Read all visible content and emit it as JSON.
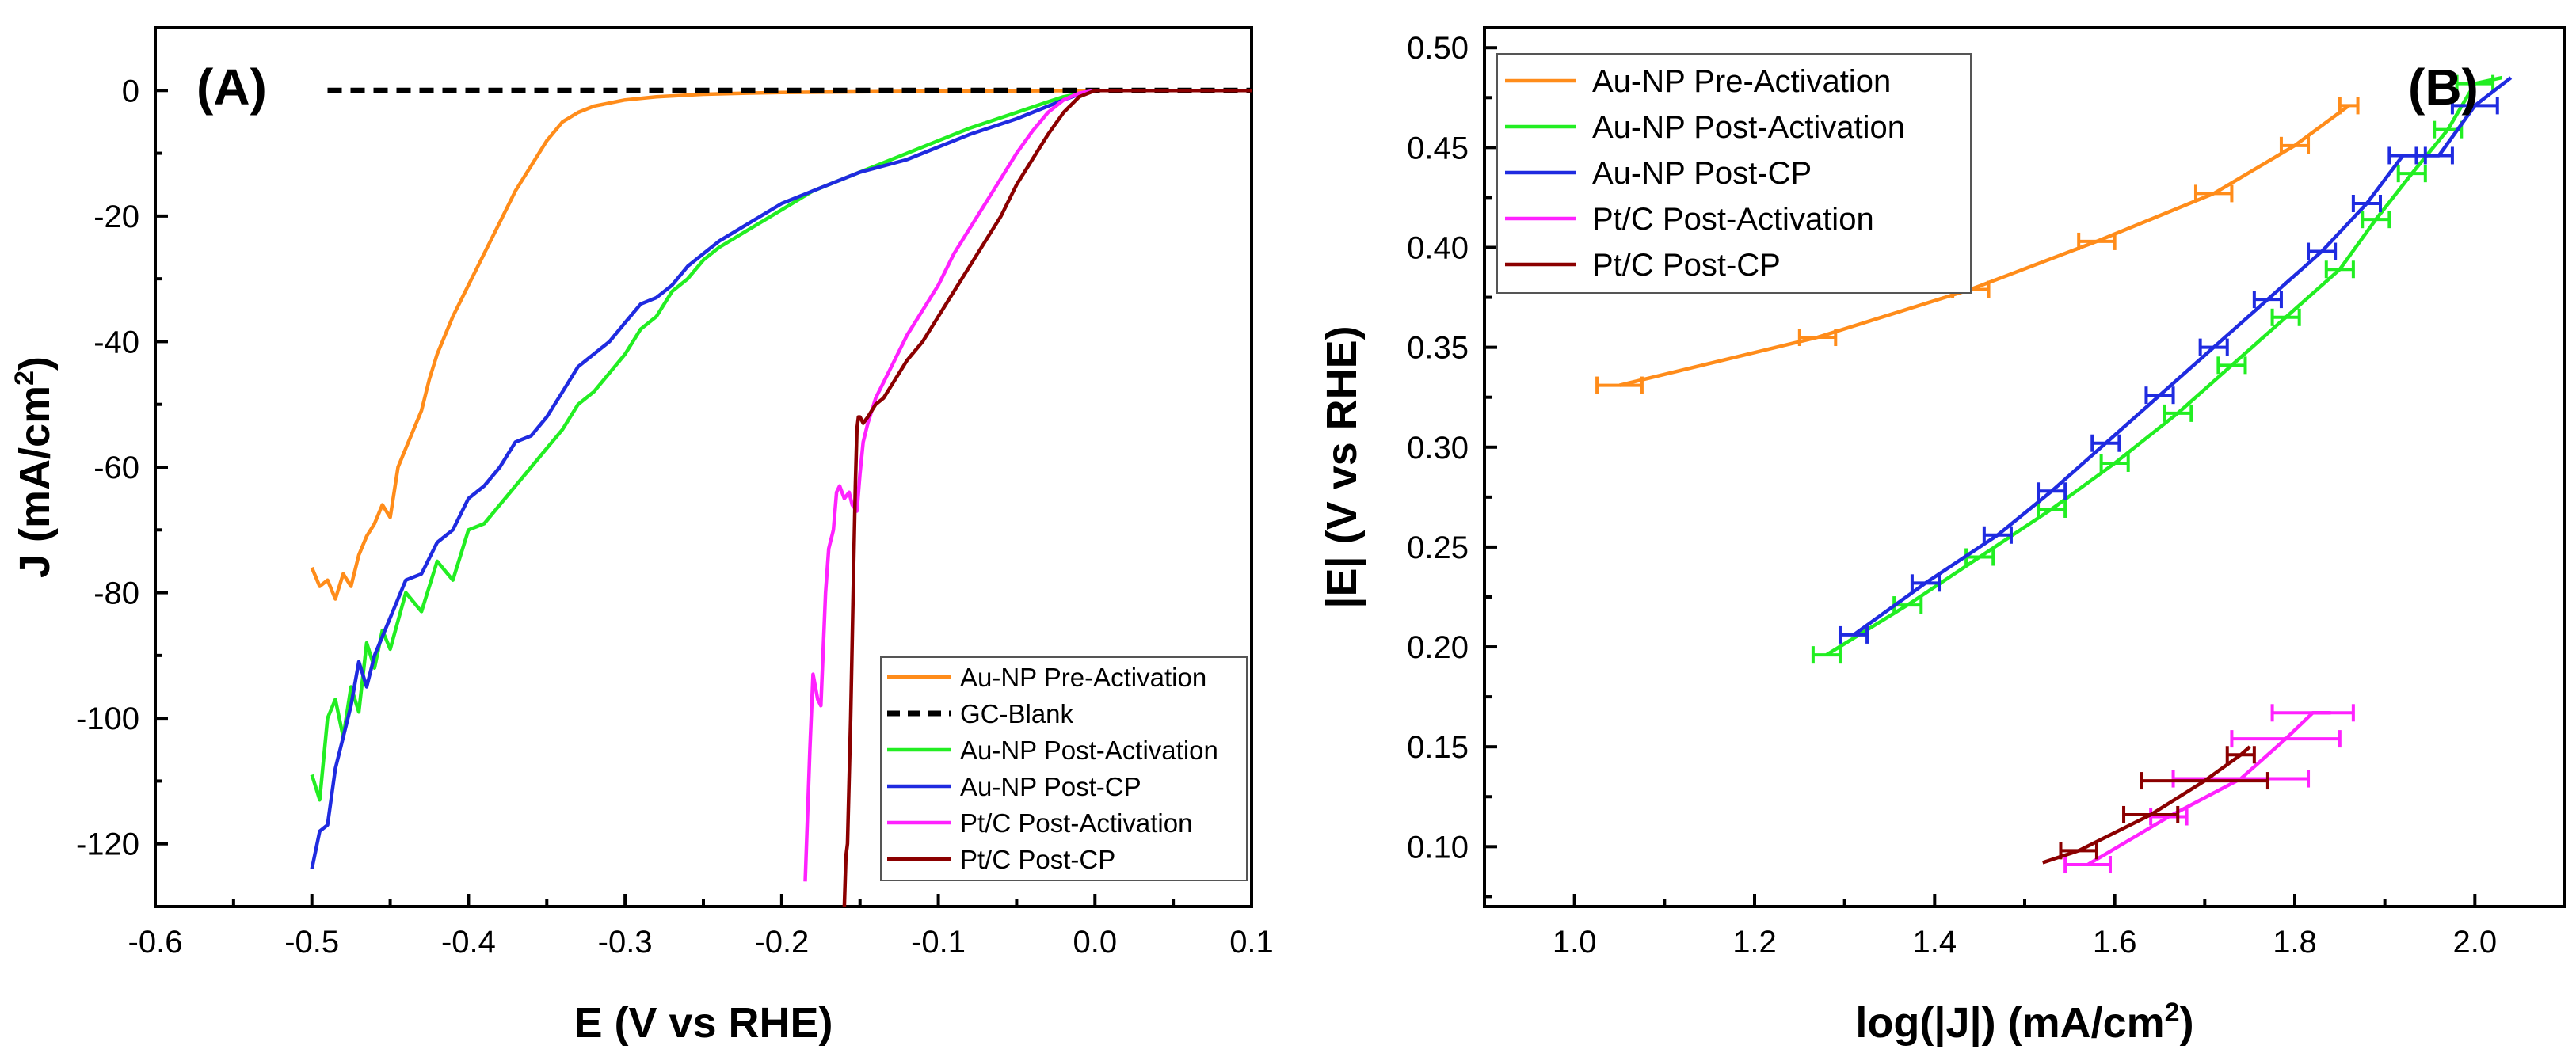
{
  "chart_data": [
    {
      "type": "line",
      "panel_label": "(A)",
      "xlabel": "E (V vs RHE)",
      "ylabel_main": "J (mA/cm",
      "ylabel_sup": "2",
      "ylabel_end": ")",
      "xlim": [
        -0.6,
        0.1
      ],
      "ylim": [
        -130,
        10
      ],
      "xticks": [
        -0.6,
        -0.5,
        -0.4,
        -0.3,
        -0.2,
        -0.1,
        0.0,
        0.1
      ],
      "xtick_labels": [
        "-0.6",
        "-0.5",
        "-0.4",
        "-0.3",
        "-0.2",
        "-0.1",
        "0.0",
        "0.1"
      ],
      "yticks": [
        0,
        -20,
        -40,
        -60,
        -80,
        -100,
        -120
      ],
      "ytick_labels": [
        "0",
        "-20",
        "-40",
        "-60",
        "-80",
        "-100",
        "-120"
      ],
      "legend_position": "bottom-right",
      "series": [
        {
          "name": "Au-NP Pre-Activation",
          "color": "#FF8C1A",
          "dash": false,
          "x": [
            -0.5,
            -0.495,
            -0.49,
            -0.485,
            -0.48,
            -0.475,
            -0.47,
            -0.465,
            -0.46,
            -0.455,
            -0.45,
            -0.445,
            -0.44,
            -0.435,
            -0.43,
            -0.425,
            -0.42,
            -0.41,
            -0.4,
            -0.39,
            -0.38,
            -0.37,
            -0.36,
            -0.35,
            -0.34,
            -0.33,
            -0.32,
            -0.3,
            -0.28,
            -0.25,
            -0.22,
            -0.2,
            -0.15,
            -0.1,
            -0.05,
            0.0,
            0.05,
            0.1
          ],
          "y": [
            -76,
            -79,
            -78,
            -81,
            -77,
            -79,
            -74,
            -71,
            -69,
            -66,
            -68,
            -60,
            -57,
            -54,
            -51,
            -46,
            -42,
            -36,
            -31,
            -26,
            -21,
            -16,
            -12,
            -8,
            -5,
            -3.5,
            -2.5,
            -1.5,
            -1.0,
            -0.6,
            -0.4,
            -0.3,
            -0.2,
            -0.1,
            -0.05,
            0,
            0,
            0
          ]
        },
        {
          "name": "GC-Blank",
          "color": "#000000",
          "dash": true,
          "x": [
            -0.49,
            0.1
          ],
          "y": [
            0,
            0
          ]
        },
        {
          "name": "Au-NP Post-Activation",
          "color": "#22EE22",
          "dash": false,
          "x": [
            -0.5,
            -0.495,
            -0.49,
            -0.485,
            -0.48,
            -0.475,
            -0.47,
            -0.465,
            -0.46,
            -0.455,
            -0.45,
            -0.44,
            -0.43,
            -0.42,
            -0.41,
            -0.4,
            -0.39,
            -0.38,
            -0.37,
            -0.36,
            -0.35,
            -0.34,
            -0.33,
            -0.32,
            -0.31,
            -0.3,
            -0.29,
            -0.28,
            -0.27,
            -0.26,
            -0.25,
            -0.24,
            -0.22,
            -0.2,
            -0.18,
            -0.15,
            -0.12,
            -0.1,
            -0.08,
            -0.05,
            -0.03,
            -0.02,
            -0.01,
            0.0,
            0.05,
            0.1
          ],
          "y": [
            -109,
            -113,
            -100,
            -97,
            -103,
            -95,
            -99,
            -88,
            -92,
            -86,
            -89,
            -80,
            -83,
            -75,
            -78,
            -70,
            -69,
            -66,
            -63,
            -60,
            -57,
            -54,
            -50,
            -48,
            -45,
            -42,
            -38,
            -36,
            -32,
            -30,
            -27,
            -25,
            -22,
            -19,
            -16,
            -13,
            -10,
            -8,
            -6,
            -3.5,
            -1.8,
            -1,
            -0.5,
            0,
            0,
            0
          ]
        },
        {
          "name": "Au-NP Post-CP",
          "color": "#1F2BE0",
          "dash": false,
          "x": [
            -0.5,
            -0.495,
            -0.49,
            -0.485,
            -0.48,
            -0.475,
            -0.47,
            -0.465,
            -0.46,
            -0.455,
            -0.45,
            -0.44,
            -0.43,
            -0.42,
            -0.41,
            -0.4,
            -0.39,
            -0.38,
            -0.37,
            -0.36,
            -0.35,
            -0.34,
            -0.33,
            -0.32,
            -0.31,
            -0.3,
            -0.29,
            -0.28,
            -0.27,
            -0.26,
            -0.25,
            -0.24,
            -0.22,
            -0.2,
            -0.18,
            -0.15,
            -0.12,
            -0.1,
            -0.08,
            -0.05,
            -0.03,
            -0.02,
            -0.01,
            0.0,
            0.05,
            0.1
          ],
          "y": [
            -124,
            -118,
            -117,
            -108,
            -103,
            -98,
            -91,
            -95,
            -90,
            -87,
            -84,
            -78,
            -77,
            -72,
            -70,
            -65,
            -63,
            -60,
            -56,
            -55,
            -52,
            -48,
            -44,
            -42,
            -40,
            -37,
            -34,
            -33,
            -31,
            -28,
            -26,
            -24,
            -21,
            -18,
            -16,
            -13,
            -11,
            -9,
            -7,
            -4.5,
            -2.5,
            -1.5,
            -0.6,
            0,
            0,
            0
          ]
        },
        {
          "name": "Pt/C Post-Activation",
          "color": "#FF22FF",
          "dash": false,
          "x": [
            -0.185,
            -0.182,
            -0.18,
            -0.177,
            -0.175,
            -0.172,
            -0.17,
            -0.167,
            -0.165,
            -0.163,
            -0.16,
            -0.157,
            -0.155,
            -0.152,
            -0.15,
            -0.148,
            -0.145,
            -0.14,
            -0.13,
            -0.12,
            -0.11,
            -0.1,
            -0.09,
            -0.08,
            -0.07,
            -0.06,
            -0.05,
            -0.04,
            -0.03,
            -0.02,
            -0.01,
            0.0,
            0.05,
            0.1
          ],
          "y": [
            -126,
            -105,
            -93,
            -97,
            -98,
            -80,
            -73,
            -70,
            -64,
            -63,
            -65,
            -64,
            -66,
            -67,
            -61,
            -56,
            -53,
            -49,
            -44,
            -39,
            -35,
            -31,
            -26,
            -22,
            -18,
            -14,
            -10,
            -6.5,
            -3.5,
            -1.5,
            -0.4,
            0,
            0,
            0
          ]
        },
        {
          "name": "Pt/C Post-CP",
          "color": "#8B0000",
          "dash": false,
          "x": [
            -0.16,
            -0.159,
            -0.158,
            -0.157,
            -0.156,
            -0.155,
            -0.154,
            -0.153,
            -0.152,
            -0.151,
            -0.15,
            -0.148,
            -0.145,
            -0.14,
            -0.135,
            -0.13,
            -0.12,
            -0.11,
            -0.1,
            -0.09,
            -0.08,
            -0.07,
            -0.06,
            -0.05,
            -0.04,
            -0.03,
            -0.02,
            -0.01,
            0.0,
            0.05,
            0.1
          ],
          "y": [
            -130,
            -122,
            -120,
            -110,
            -100,
            -88,
            -75,
            -63,
            -54,
            -52,
            -52,
            -53,
            -52,
            -50,
            -49,
            -47,
            -43,
            -40,
            -36,
            -32,
            -28,
            -24,
            -20,
            -15,
            -11,
            -7,
            -3.5,
            -1,
            0,
            0,
            0
          ]
        }
      ]
    },
    {
      "type": "line",
      "panel_label": "(B)",
      "xlabel_main": "log(|J|) (mA/cm",
      "xlabel_sup": "2",
      "xlabel_end": ")",
      "ylabel": "|E| (V vs RHE)",
      "xlim": [
        0.9,
        2.1
      ],
      "ylim": [
        0.07,
        0.51
      ],
      "xticks": [
        1.0,
        1.2,
        1.4,
        1.6,
        1.8,
        2.0
      ],
      "xtick_labels": [
        "1.0",
        "1.2",
        "1.4",
        "1.6",
        "1.8",
        "2.0"
      ],
      "yticks": [
        0.1,
        0.15,
        0.2,
        0.25,
        0.3,
        0.35,
        0.4,
        0.45,
        0.5
      ],
      "ytick_labels": [
        "0.10",
        "0.15",
        "0.20",
        "0.25",
        "0.30",
        "0.35",
        "0.40",
        "0.45",
        "0.50"
      ],
      "legend_position": "top-left",
      "series": [
        {
          "name": "Au-NP Pre-Activation",
          "color": "#FF8C1A",
          "x": [
            1.05,
            1.27,
            1.44,
            1.58,
            1.71,
            1.8,
            1.86
          ],
          "y": [
            0.331,
            0.355,
            0.379,
            0.403,
            0.427,
            0.451,
            0.471
          ],
          "err": [
            0.025,
            0.02,
            0.02,
            0.02,
            0.02,
            0.015,
            0.01
          ]
        },
        {
          "name": "Au-NP Post-Activation",
          "color": "#22EE22",
          "x": [
            1.28,
            1.37,
            1.45,
            1.53,
            1.6,
            1.67,
            1.73,
            1.79,
            1.85,
            1.89,
            1.93,
            1.97,
            2.0,
            2.03
          ],
          "y": [
            0.196,
            0.221,
            0.245,
            0.269,
            0.292,
            0.317,
            0.341,
            0.365,
            0.389,
            0.414,
            0.437,
            0.459,
            0.482,
            0.485
          ],
          "err": [
            0.015,
            0.015,
            0.015,
            0.015,
            0.015,
            0.015,
            0.015,
            0.015,
            0.015,
            0.015,
            0.015,
            0.015,
            0.02,
            0.0
          ]
        },
        {
          "name": "Au-NP Post-CP",
          "color": "#1F2BE0",
          "x": [
            1.31,
            1.39,
            1.47,
            1.53,
            1.59,
            1.65,
            1.71,
            1.77,
            1.83,
            1.88,
            1.92,
            1.96,
            2.0,
            2.04
          ],
          "y": [
            0.206,
            0.232,
            0.256,
            0.278,
            0.302,
            0.326,
            0.35,
            0.374,
            0.398,
            0.422,
            0.446,
            0.446,
            0.471,
            0.485
          ],
          "err": [
            0.015,
            0.015,
            0.015,
            0.015,
            0.015,
            0.015,
            0.015,
            0.015,
            0.015,
            0.015,
            0.015,
            0.015,
            0.025,
            0.0
          ]
        },
        {
          "name": "Pt/C Post-Activation",
          "color": "#FF22FF",
          "x": [
            1.57,
            1.66,
            1.74,
            1.79,
            1.82,
            1.84
          ],
          "y": [
            0.091,
            0.115,
            0.134,
            0.154,
            0.167,
            0.167
          ],
          "err": [
            0.025,
            0.02,
            0.075,
            0.06,
            0.045,
            0.0
          ]
        },
        {
          "name": "Pt/C Post-CP",
          "color": "#8B0000",
          "x": [
            1.52,
            1.56,
            1.64,
            1.7,
            1.74,
            1.75
          ],
          "y": [
            0.092,
            0.098,
            0.116,
            0.133,
            0.146,
            0.15
          ],
          "err": [
            0.0,
            0.02,
            0.03,
            0.07,
            0.015,
            0.0
          ]
        }
      ]
    }
  ]
}
